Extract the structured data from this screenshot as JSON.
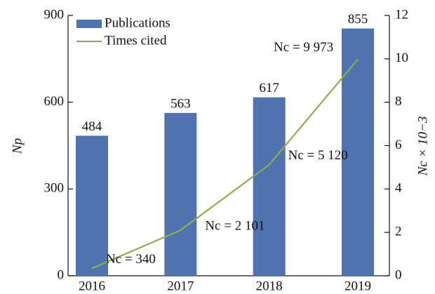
{
  "chart_data": {
    "type": "bar_line",
    "categories": [
      "2016",
      "2017",
      "2018",
      "2019"
    ],
    "series": [
      {
        "name": "Publications",
        "type": "bar",
        "color": "#4f73b0",
        "values": [
          484,
          563,
          617,
          855
        ]
      },
      {
        "name": "Times cited",
        "type": "line",
        "axis": "y2",
        "color": "#8fad4a",
        "values": [
          0.34,
          2.101,
          5.12,
          9.973
        ],
        "value_labels": [
          "Nc = 340",
          "Nc = 2 101",
          "Nc = 5 120",
          "Nc = 9 973"
        ]
      }
    ],
    "y_label": "Np",
    "y2_label": "Nc × 10−3",
    "ylim": [
      0,
      900
    ],
    "yticks": [
      0,
      300,
      600,
      900
    ],
    "y2lim": [
      0,
      12
    ],
    "y2ticks": [
      0,
      2,
      4,
      6,
      8,
      10,
      12
    ],
    "legend": "upper left",
    "grid": false
  }
}
